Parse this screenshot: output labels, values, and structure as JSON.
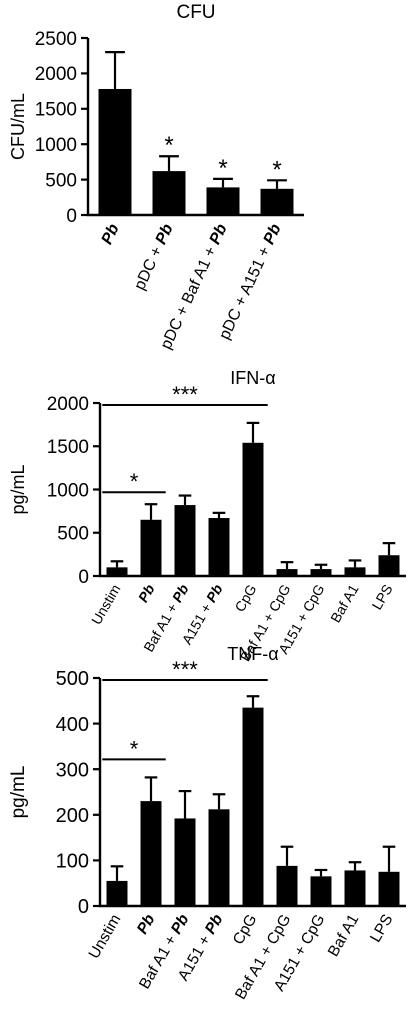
{
  "chart_data": [
    {
      "type": "bar",
      "title": "CFU",
      "ylabel": "CFU/mL",
      "ylim": [
        0,
        2500
      ],
      "yticks": [
        0,
        500,
        1000,
        1500,
        2000,
        2500
      ],
      "categories": [
        "Pb",
        "pDC + Pb",
        "pDC + Baf A1 + Pb",
        "pDC + A151 + Pb"
      ],
      "values": [
        1780,
        620,
        390,
        370
      ],
      "errors": [
        520,
        210,
        120,
        120
      ],
      "significance": [
        {
          "label": "*",
          "bar": 1
        },
        {
          "label": "*",
          "bar": 2
        },
        {
          "label": "*",
          "bar": 3
        }
      ],
      "brackets": [],
      "legend": "none",
      "grid": false
    },
    {
      "type": "bar",
      "title": "IFN-α",
      "ylabel": "pg/mL",
      "ylim": [
        0,
        2000
      ],
      "yticks": [
        0,
        500,
        1000,
        1500,
        2000
      ],
      "categories": [
        "Unstim",
        "Pb",
        "Baf A1 + Pb",
        "A151 + Pb",
        "CpG",
        "Baf A1 + CpG",
        "A151 + CpG",
        "Baf A1",
        "LPS"
      ],
      "values": [
        100,
        650,
        820,
        670,
        1540,
        80,
        80,
        100,
        240
      ],
      "errors": [
        70,
        180,
        110,
        60,
        230,
        80,
        50,
        80,
        140
      ],
      "significance": [],
      "brackets": [
        {
          "label": "*",
          "from": 0,
          "to": 1
        },
        {
          "label": "***",
          "from": 0,
          "to": 4
        }
      ],
      "legend": "none",
      "grid": false
    },
    {
      "type": "bar",
      "title": "TNF-α",
      "ylabel": "pg/mL",
      "ylim": [
        0,
        500
      ],
      "yticks": [
        0,
        100,
        200,
        300,
        400,
        500
      ],
      "categories": [
        "Unstim",
        "Pb",
        "Baf A1 + Pb",
        "A151 + Pb",
        "CpG",
        "Baf A1 + CpG",
        "A151 + CpG",
        "Baf A1",
        "LPS"
      ],
      "values": [
        55,
        230,
        192,
        212,
        435,
        88,
        65,
        78,
        75
      ],
      "errors": [
        32,
        52,
        60,
        33,
        25,
        42,
        14,
        18,
        55
      ],
      "significance": [],
      "brackets": [
        {
          "label": "*",
          "from": 0,
          "to": 1
        },
        {
          "label": "***",
          "from": 0,
          "to": 4
        }
      ],
      "legend": "none",
      "grid": false
    }
  ]
}
